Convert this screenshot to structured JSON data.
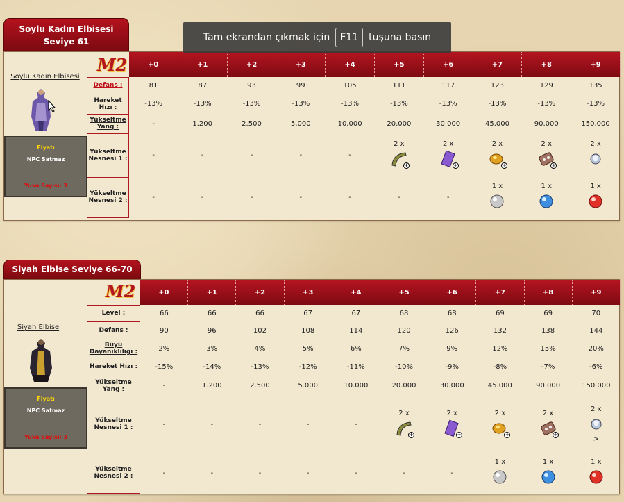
{
  "overlay": {
    "before": "Tam ekrandan çıkmak için",
    "key": "F11",
    "after": "tuşuna basın"
  },
  "logo_text": "M2",
  "sections": [
    {
      "title_line1": "Soylu Kadın Elbisesi",
      "title_line2": "Seviye 61",
      "item_name": "Soylu Kadın Elbisesi",
      "price": {
        "label": "Fiyatı",
        "value": "NPC Satmaz",
        "slots": "Yuva Sayısı: 3"
      },
      "headers": [
        "+0",
        "+1",
        "+2",
        "+3",
        "+4",
        "+5",
        "+6",
        "+7",
        "+8",
        "+9"
      ],
      "rows": [
        {
          "label": "Defans :",
          "values": [
            "81",
            "87",
            "93",
            "99",
            "105",
            "111",
            "117",
            "123",
            "129",
            "135"
          ]
        },
        {
          "label": "Hareket Hızı :",
          "values": [
            "-13%",
            "-13%",
            "-13%",
            "-13%",
            "-13%",
            "-13%",
            "-13%",
            "-13%",
            "-13%",
            "-13%"
          ]
        },
        {
          "label": "Yükseltme Yang :",
          "values": [
            "-",
            "1.200",
            "2.500",
            "5.000",
            "10.000",
            "20.000",
            "30.000",
            "45.000",
            "90.000",
            "150.000"
          ]
        }
      ],
      "material1": {
        "label": "Yükseltme Nesnesi 1 :",
        "values": [
          "-",
          "-",
          "-",
          "-",
          "-",
          "2 x",
          "2 x",
          "2 x",
          "2 x",
          "2 x"
        ]
      },
      "material2": {
        "label": "Yükseltme Nesnesi 2 :",
        "values": [
          "-",
          "-",
          "-",
          "-",
          "-",
          "-",
          "-",
          "1 x",
          "1 x",
          "1 x"
        ]
      }
    },
    {
      "title_line1": "Siyah Elbise Seviye 66-70",
      "item_name": "Siyah Elbise",
      "price": {
        "label": "Fiyatı",
        "value": "NPC Satmaz",
        "slots": "Yuva Sayısı: 3"
      },
      "headers": [
        "+0",
        "+1",
        "+2",
        "+3",
        "+4",
        "+5",
        "+6",
        "+7",
        "+8",
        "+9"
      ],
      "rows": [
        {
          "label": "Level :",
          "values": [
            "66",
            "66",
            "66",
            "67",
            "67",
            "68",
            "68",
            "69",
            "69",
            "70"
          ]
        },
        {
          "label": "Defans :",
          "values": [
            "90",
            "96",
            "102",
            "108",
            "114",
            "120",
            "126",
            "132",
            "138",
            "144"
          ]
        },
        {
          "label": "Büyü Dayanıklılığı :",
          "values": [
            "2%",
            "3%",
            "4%",
            "5%",
            "6%",
            "7%",
            "9%",
            "12%",
            "15%",
            "20%"
          ]
        },
        {
          "label": "Hareket Hızı :",
          "values": [
            "-15%",
            "-14%",
            "-13%",
            "-12%",
            "-11%",
            "-10%",
            "-9%",
            "-8%",
            "-7%",
            "-6%"
          ]
        },
        {
          "label": "Yükseltme Yang :",
          "values": [
            "-",
            "1.200",
            "2.500",
            "5.000",
            "10.000",
            "20.000",
            "30.000",
            "45.000",
            "90.000",
            "150.000"
          ]
        }
      ],
      "material1": {
        "label": "Yükseltme Nesnesi 1 :",
        "values": [
          "-",
          "-",
          "-",
          "-",
          "-",
          "2 x",
          "2 x",
          "2 x",
          "2 x",
          "2 x"
        ],
        "extra": ">"
      },
      "material2": {
        "label": "Yükseltme Nesnesi 2 :",
        "values": [
          "-",
          "-",
          "-",
          "-",
          "-",
          "-",
          "-",
          "1 x",
          "1 x",
          "1 x"
        ]
      }
    }
  ]
}
